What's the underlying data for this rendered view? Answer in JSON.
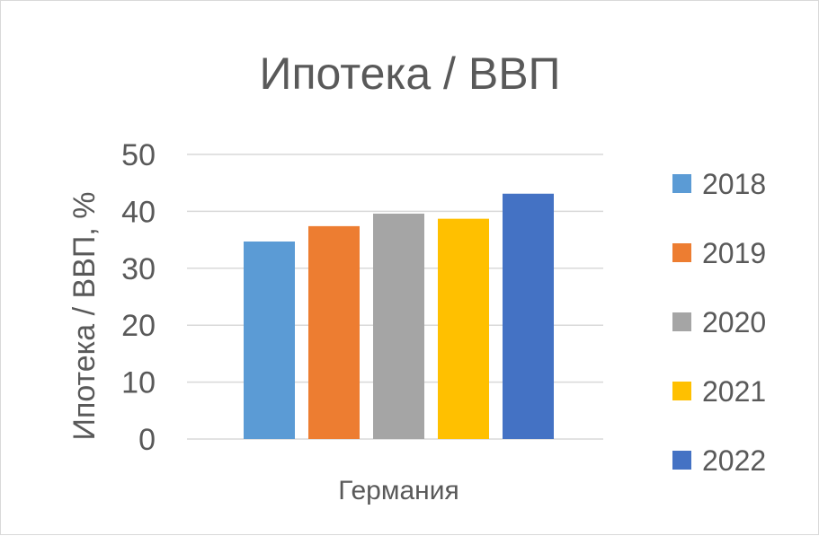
{
  "chart_data": {
    "type": "bar",
    "title": "Ипотека / ВВП",
    "ylabel": "Ипотека / ВВП, %",
    "xlabel": "",
    "categories": [
      "Германия"
    ],
    "series": [
      {
        "name": "2018",
        "values": [
          34.7
        ],
        "color": "#5b9bd5"
      },
      {
        "name": "2019",
        "values": [
          37.4
        ],
        "color": "#ed7d31"
      },
      {
        "name": "2020",
        "values": [
          39.6
        ],
        "color": "#a5a5a5"
      },
      {
        "name": "2021",
        "values": [
          38.7
        ],
        "color": "#ffc000"
      },
      {
        "name": "2022",
        "values": [
          43.1
        ],
        "color": "#4472c4"
      }
    ],
    "ylim": [
      0,
      50
    ],
    "yticks": [
      0,
      10,
      20,
      30,
      40,
      50
    ],
    "grid": true,
    "legend_position": "right"
  }
}
